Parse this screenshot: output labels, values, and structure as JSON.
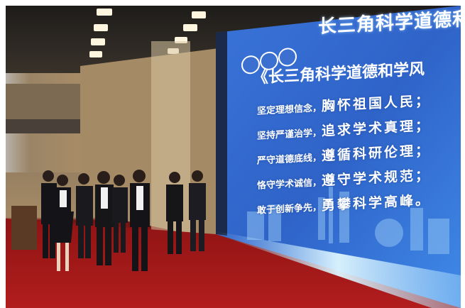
{
  "screen": {
    "title": "长三角科学道德和学风",
    "heading": "《长三角科学道德和学风",
    "pledges": [
      {
        "a": "坚定理想信念，",
        "b": "胸怀祖国人民；"
      },
      {
        "a": "坚持严谨治学，",
        "b": "追求学术真理；"
      },
      {
        "a": "严守道德底线，",
        "b": "遵循科研伦理；"
      },
      {
        "a": "恪守学术诚信，",
        "b": "遵守学术规范；"
      },
      {
        "a": "敢于创新争先，",
        "b": "勇攀科学高峰。"
      }
    ]
  },
  "colors": {
    "screen_blue": "#2f63c8",
    "carpet_red": "#a51a1a",
    "wall_wood": "#a58a66"
  },
  "icons": [
    "logo-emblem-icon",
    "logo-emblem-icon",
    "logo-emblem-icon"
  ]
}
